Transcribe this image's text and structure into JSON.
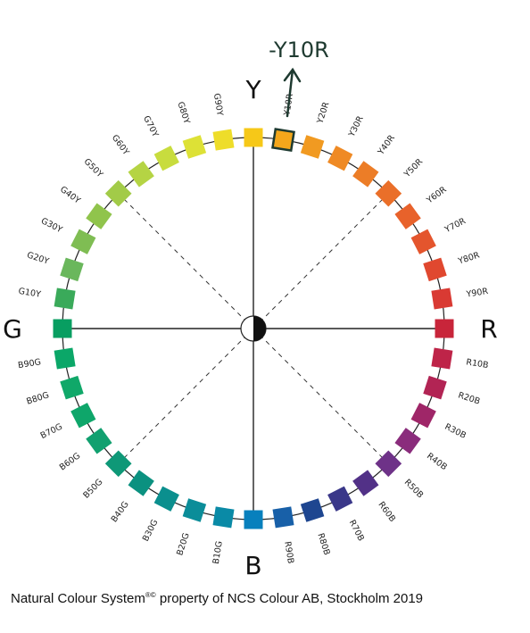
{
  "pole_labels": {
    "top": "Y",
    "right": "R",
    "bottom": "B",
    "left": "G"
  },
  "callout": {
    "text": "-Y10R",
    "highlight_hue": "Y10R",
    "color": "#1e3a30"
  },
  "hues": [
    {
      "label": "Y",
      "color": "#f6c818"
    },
    {
      "label": "Y10R",
      "color": "#f4a71b"
    },
    {
      "label": "Y20R",
      "color": "#f19a21"
    },
    {
      "label": "Y30R",
      "color": "#ef8a24"
    },
    {
      "label": "Y40R",
      "color": "#ec7d27"
    },
    {
      "label": "Y50R",
      "color": "#ea6f29"
    },
    {
      "label": "Y60R",
      "color": "#e8622b"
    },
    {
      "label": "Y70R",
      "color": "#e4552d"
    },
    {
      "label": "Y80R",
      "color": "#e0482f"
    },
    {
      "label": "Y90R",
      "color": "#d93a33"
    },
    {
      "label": "R",
      "color": "#c8253a"
    },
    {
      "label": "R10B",
      "color": "#be2448"
    },
    {
      "label": "R20B",
      "color": "#b22454"
    },
    {
      "label": "R30B",
      "color": "#9f2668"
    },
    {
      "label": "R40B",
      "color": "#8a2c7c"
    },
    {
      "label": "R50B",
      "color": "#6e3288"
    },
    {
      "label": "R60B",
      "color": "#523187"
    },
    {
      "label": "R70B",
      "color": "#3a3789"
    },
    {
      "label": "R80B",
      "color": "#1e4690"
    },
    {
      "label": "R90B",
      "color": "#1860a8"
    },
    {
      "label": "B",
      "color": "#0880bd"
    },
    {
      "label": "B10G",
      "color": "#0a8aa6"
    },
    {
      "label": "B20G",
      "color": "#0b8d99"
    },
    {
      "label": "B30G",
      "color": "#0b8f8e"
    },
    {
      "label": "B40G",
      "color": "#0b9180"
    },
    {
      "label": "B50G",
      "color": "#0e9877"
    },
    {
      "label": "B60G",
      "color": "#11a06f"
    },
    {
      "label": "B70G",
      "color": "#0ea66a"
    },
    {
      "label": "B80G",
      "color": "#10a869"
    },
    {
      "label": "B90G",
      "color": "#0ba768"
    },
    {
      "label": "G",
      "color": "#089e61"
    },
    {
      "label": "G10Y",
      "color": "#3aaa5a"
    },
    {
      "label": "G20Y",
      "color": "#6ab75c"
    },
    {
      "label": "G30Y",
      "color": "#7fbd53"
    },
    {
      "label": "G40Y",
      "color": "#90c44c"
    },
    {
      "label": "G50Y",
      "color": "#a2cb48"
    },
    {
      "label": "G60Y",
      "color": "#b5d444"
    },
    {
      "label": "G70Y",
      "color": "#c8dc3e"
    },
    {
      "label": "G80Y",
      "color": "#dde136"
    },
    {
      "label": "G90Y",
      "color": "#eedd2a"
    }
  ],
  "footer": {
    "text_before": "Natural Colour System",
    "superscript": "®©",
    "text_after": " property of NCS Colour AB, Stockholm 2019"
  }
}
